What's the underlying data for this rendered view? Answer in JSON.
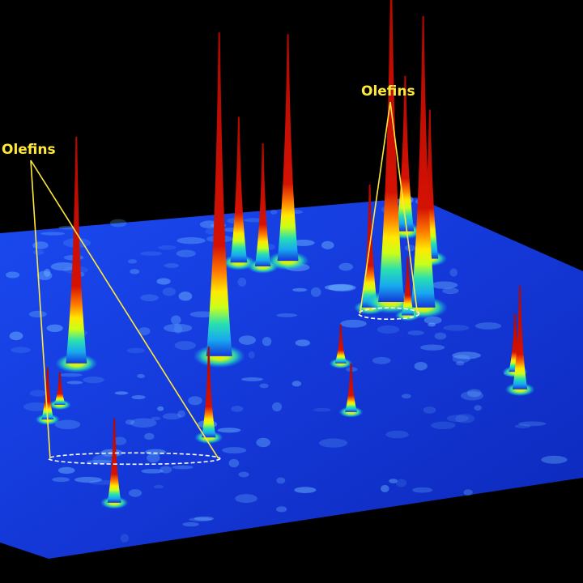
{
  "chart_data": {
    "type": "surface-3d",
    "title": "",
    "xlabel": "",
    "ylabel": "",
    "zlabel": "",
    "colors": {
      "background": "#000000",
      "base": "#1238d8",
      "low": "#18a8f0",
      "mid_low": "#28e0b0",
      "mid": "#c8ff1a",
      "mid_high": "#ffe800",
      "high": "#ff7a00",
      "peak": "#d41204",
      "annotation": "#ffe83a"
    },
    "peaks": [
      {
        "u": 0.12,
        "v": 0.42,
        "z": 0.7
      },
      {
        "u": 0.04,
        "v": 0.58,
        "z": 0.16
      },
      {
        "u": 0.07,
        "v": 0.54,
        "z": 0.1
      },
      {
        "u": 0.35,
        "v": 0.7,
        "z": 0.28
      },
      {
        "u": 0.42,
        "v": 0.45,
        "z": 1.0
      },
      {
        "u": 0.14,
        "v": 0.86,
        "z": 0.26
      },
      {
        "u": 0.53,
        "v": 0.16,
        "z": 0.45
      },
      {
        "u": 0.58,
        "v": 0.18,
        "z": 0.38
      },
      {
        "u": 0.64,
        "v": 0.17,
        "z": 0.7
      },
      {
        "u": 0.64,
        "v": 0.68,
        "z": 0.15
      },
      {
        "u": 0.66,
        "v": 0.52,
        "z": 0.12
      },
      {
        "u": 0.77,
        "v": 0.35,
        "z": 0.38
      },
      {
        "u": 0.82,
        "v": 0.34,
        "z": 1.0
      },
      {
        "u": 0.84,
        "v": 0.39,
        "z": 0.18
      },
      {
        "u": 0.88,
        "v": 0.37,
        "z": 0.9
      },
      {
        "u": 0.95,
        "v": 0.21,
        "z": 0.46
      },
      {
        "u": 0.93,
        "v": 0.11,
        "z": 0.48
      },
      {
        "u": 0.98,
        "v": 0.68,
        "z": 0.32
      },
      {
        "u": 0.99,
        "v": 0.62,
        "z": 0.18
      }
    ],
    "annotations": [
      {
        "label": "Olefins",
        "target_peaks": [
          2,
          3,
          5
        ]
      },
      {
        "label": "Olefins",
        "target_peaks": [
          11,
          12,
          13
        ]
      }
    ]
  }
}
